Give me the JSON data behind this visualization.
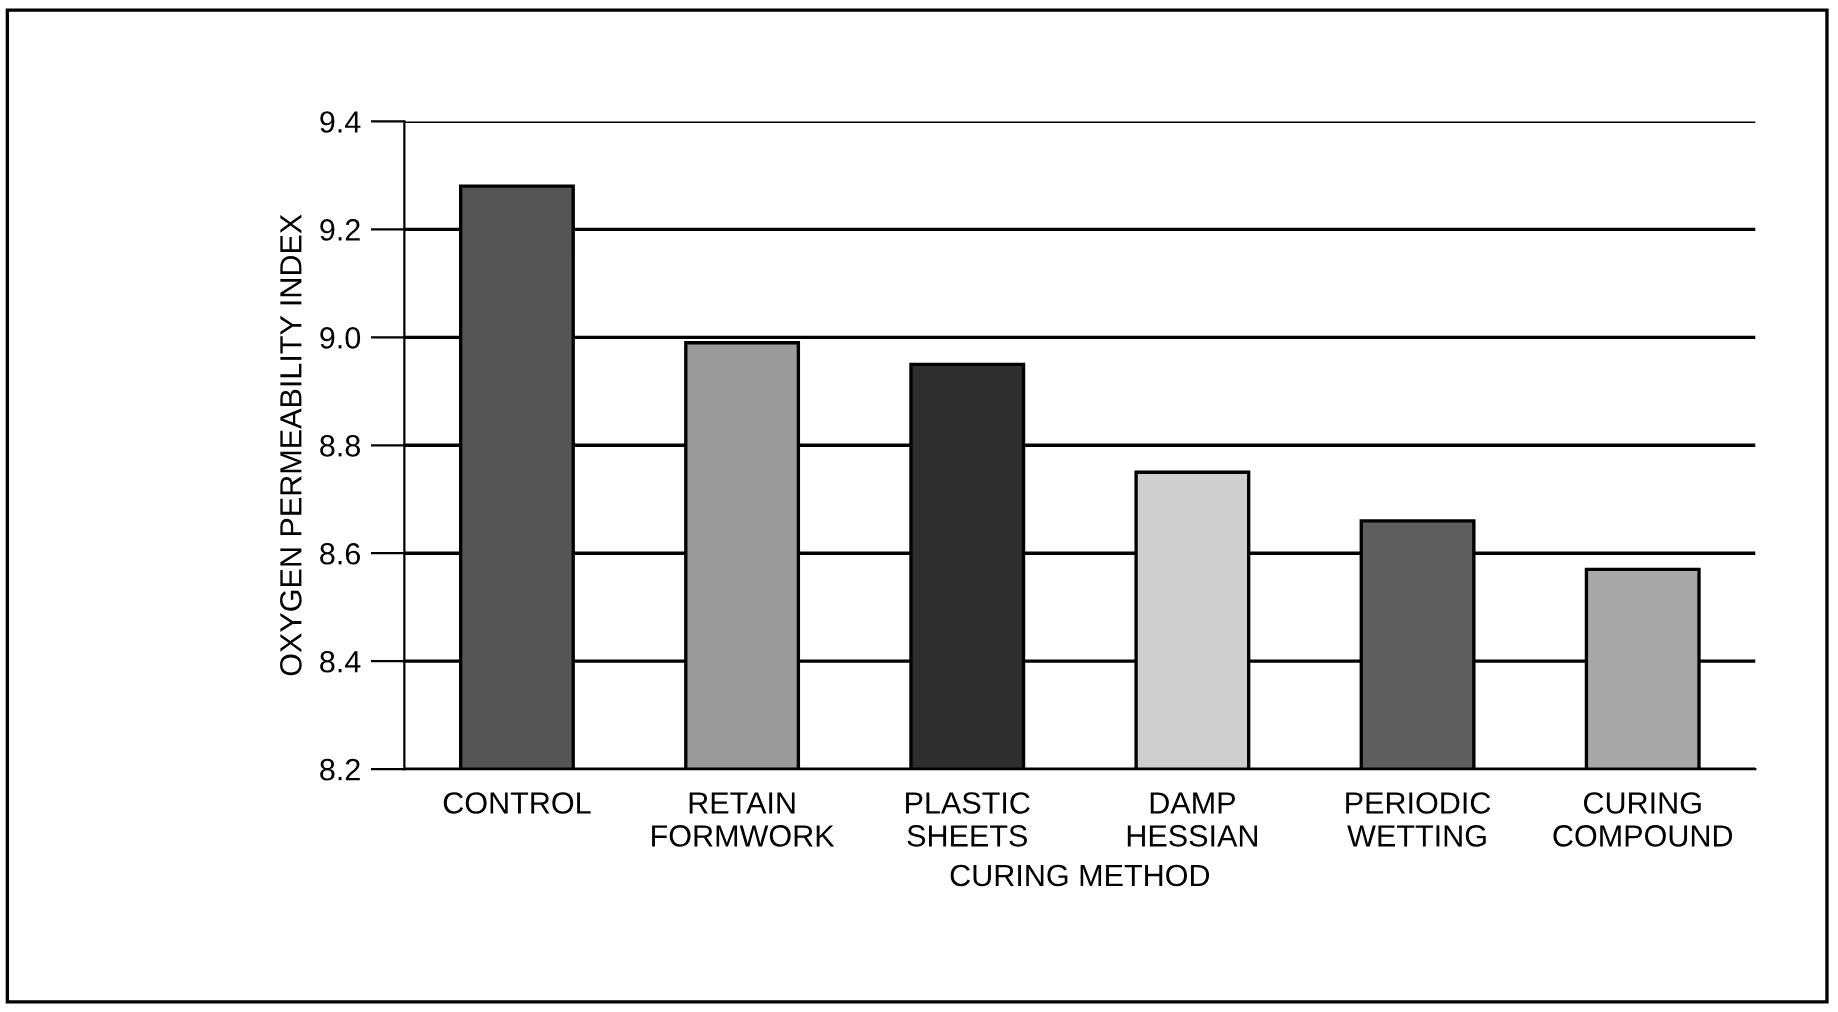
{
  "chart_data": {
    "type": "bar",
    "categories": [
      "CONTROL",
      "RETAIN\nFORMWORK",
      "PLASTIC\nSHEETS",
      "DAMP\nHESSIAN",
      "PERIODIC\nWETTING",
      "CURING\nCOMPOUND"
    ],
    "values": [
      9.28,
      8.99,
      8.95,
      8.75,
      8.66,
      8.57
    ],
    "colors": [
      "#555555",
      "#9a9a9a",
      "#2e2e2e",
      "#cfcfcf",
      "#5e5e5e",
      "#a8a8a8"
    ],
    "xlabel": "CURING METHOD",
    "ylabel": "OXYGEN PERMEABILITY INDEX",
    "ylim": [
      8.2,
      9.4
    ],
    "yticks": [
      {
        "value": 8.2,
        "label": "8.2"
      },
      {
        "value": 8.4,
        "label": "8.4"
      },
      {
        "value": 8.6,
        "label": "8.6"
      },
      {
        "value": 8.8,
        "label": "8.8"
      },
      {
        "value": 9.0,
        "label": "9.0"
      },
      {
        "value": 9.2,
        "label": "9.2"
      },
      {
        "value": 9.4,
        "label": "9.4"
      }
    ],
    "grid": "y"
  }
}
